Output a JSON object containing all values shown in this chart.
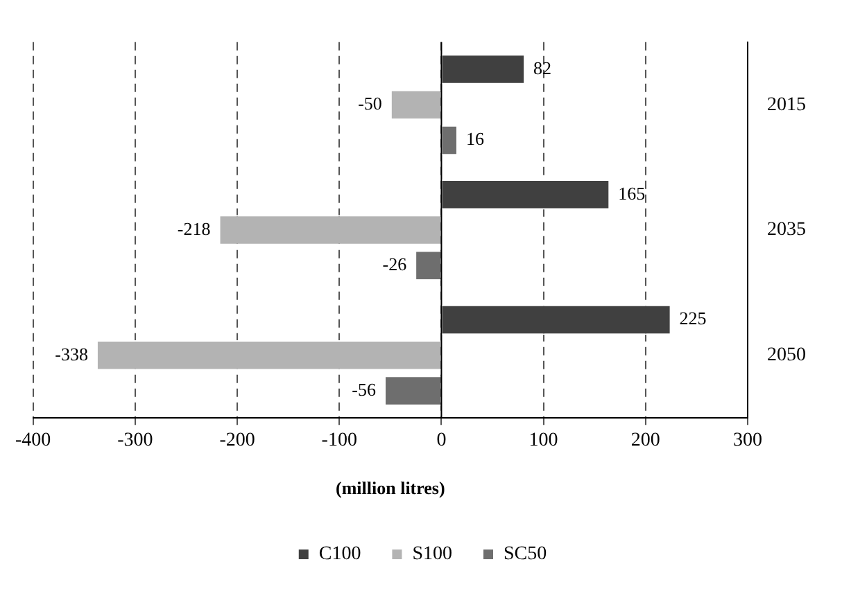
{
  "chart_data": {
    "type": "bar",
    "orientation": "horizontal",
    "categories": [
      "2015",
      "2035",
      "2050"
    ],
    "series": [
      {
        "name": "C100",
        "color": "#404040",
        "values": [
          82,
          165,
          225
        ]
      },
      {
        "name": "S100",
        "color": "#b3b3b3",
        "values": [
          -50,
          -218,
          -338
        ]
      },
      {
        "name": "SC50",
        "color": "#6e6e6e",
        "values": [
          16,
          -26,
          -56
        ]
      }
    ],
    "xlabel": "(million litres)",
    "xlim": [
      -400,
      300
    ],
    "xticks": [
      -400,
      -300,
      -200,
      -100,
      0,
      100,
      200,
      300
    ],
    "grid": "x",
    "line_style": "dashed",
    "legend": "bottom",
    "data_labels": true
  }
}
